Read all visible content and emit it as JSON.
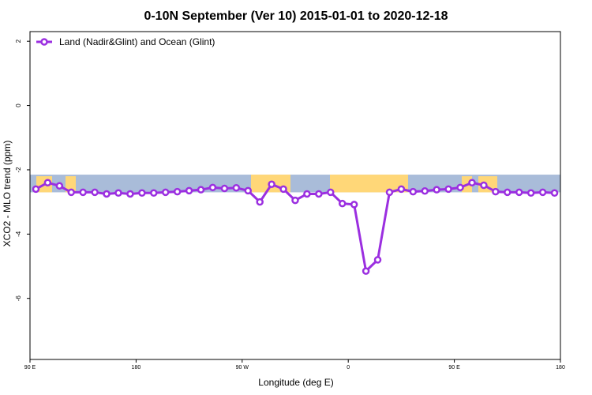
{
  "chart_data": {
    "type": "line",
    "title": "0-10N September (Ver 10)   2015-01-01 to 2020-12-18",
    "xlabel": "Longitude (deg E)",
    "ylabel": "XCO2 - MLO trend (ppm)",
    "x_ticks": [
      {
        "value": 90,
        "label": "90 E"
      },
      {
        "value": 180,
        "label": "180"
      },
      {
        "value": 270,
        "label": "90 W"
      },
      {
        "value": 360,
        "label": "0"
      },
      {
        "value": 450,
        "label": "90 E"
      },
      {
        "value": 540,
        "label": "180"
      }
    ],
    "y_ticks": [
      2,
      0,
      -2,
      -4,
      -6
    ],
    "xlim": [
      90,
      540
    ],
    "ylim": [
      -7.9,
      2.3
    ],
    "legend_position": "top-left",
    "series": [
      {
        "name": "Land (Nadir&Glint) and Ocean (Glint)",
        "color": "#9b2fe0",
        "x": [
          95,
          105,
          115,
          125,
          135,
          145,
          155,
          165,
          175,
          185,
          195,
          205,
          215,
          225,
          235,
          245,
          255,
          265,
          275,
          285,
          295,
          305,
          315,
          325,
          335,
          345,
          355,
          365,
          375,
          385,
          395,
          405,
          415,
          425,
          435,
          445,
          455,
          465,
          475,
          485,
          495,
          505,
          515,
          525,
          535
        ],
        "y": [
          -2.6,
          -2.4,
          -2.5,
          -2.7,
          -2.7,
          -2.7,
          -2.75,
          -2.72,
          -2.75,
          -2.72,
          -2.72,
          -2.7,
          -2.68,
          -2.65,
          -2.62,
          -2.55,
          -2.58,
          -2.56,
          -2.65,
          -3.0,
          -2.45,
          -2.6,
          -2.95,
          -2.75,
          -2.75,
          -2.7,
          -3.05,
          -3.08,
          -5.15,
          -4.8,
          -2.7,
          -2.6,
          -2.68,
          -2.66,
          -2.62,
          -2.6,
          -2.55,
          -2.4,
          -2.48,
          -2.68,
          -2.7,
          -2.7,
          -2.72,
          -2.7,
          -2.72
        ]
      }
    ],
    "background_map": {
      "ocean_color": "#a9bcd9",
      "land_color": "#ffd778",
      "y_range": [
        -2.7,
        -2.15
      ]
    }
  }
}
